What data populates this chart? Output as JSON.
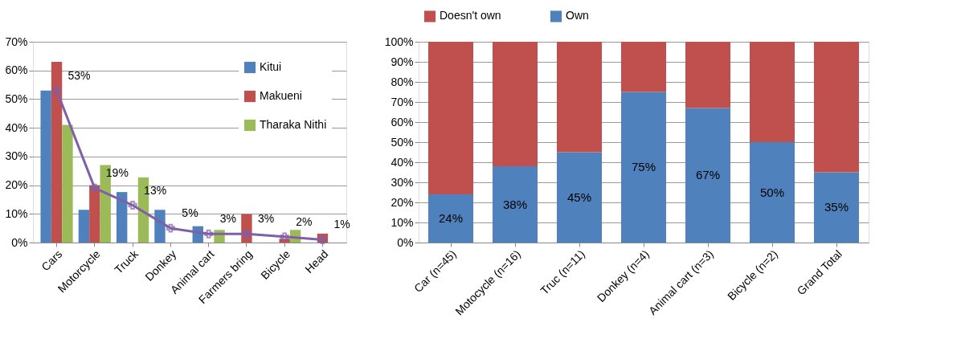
{
  "chart_data": [
    {
      "type": "bar",
      "categories": [
        "Cars",
        "Motorcycle",
        "Truck",
        "Donkey",
        "Animal cart",
        "Farmers bring",
        "Bicycle",
        "Head"
      ],
      "series": [
        {
          "name": "Kitui",
          "color": "#4f81bd",
          "values": [
            53,
            11.4,
            17.6,
            11.4,
            5.7,
            0,
            0,
            0
          ]
        },
        {
          "name": "Makueni",
          "color": "#c0504d",
          "values": [
            63,
            20,
            0,
            0,
            0,
            9.9,
            1.3,
            3.1
          ]
        },
        {
          "name": "Tharaka Nithi",
          "color": "#9bbb59",
          "values": [
            41,
            27,
            22.7,
            0,
            4.4,
            0,
            4.4,
            0
          ]
        },
        {
          "type": "line",
          "color": "#7f5fa8",
          "values": [
            53,
            19,
            13,
            5,
            3,
            3,
            2,
            1
          ],
          "value_labels": [
            "53%",
            "19%",
            "13%",
            "5%",
            "3%",
            "3%",
            "2%",
            "1%"
          ],
          "marker": "cross"
        }
      ],
      "ylim": [
        0,
        70
      ],
      "yticks": [
        {
          "value": 0,
          "label": "0%"
        },
        {
          "value": 10,
          "label": "10%"
        },
        {
          "value": 20,
          "label": "20%"
        },
        {
          "value": 30,
          "label": "30%"
        },
        {
          "value": 40,
          "label": "40%"
        },
        {
          "value": 50,
          "label": "50%"
        },
        {
          "value": 60,
          "label": "60%"
        },
        {
          "value": 70,
          "label": "70%"
        }
      ],
      "grid": "y",
      "legend": "top right"
    },
    {
      "type": "bar",
      "stacked": true,
      "categories": [
        "Car (n=45)",
        "Motocycle (n=16)",
        "Truc (n=11)",
        "Donkey (n=4)",
        "Animal cart (n=3)",
        "Bicycle (n=2)",
        "Grand Total"
      ],
      "series": [
        {
          "name": "Own",
          "color": "#4f81bd",
          "values": [
            24,
            38,
            45,
            75,
            67,
            50,
            35
          ],
          "value_labels": [
            "24%",
            "38%",
            "45%",
            "75%",
            "67%",
            "50%",
            "35%"
          ]
        },
        {
          "name": "Doesn't own",
          "color": "#c0504d",
          "values": [
            76,
            62,
            55,
            25,
            33,
            50,
            65
          ]
        }
      ],
      "ylim": [
        0,
        100
      ],
      "yticks": [
        {
          "value": 0,
          "label": "0%"
        },
        {
          "value": 10,
          "label": "10%"
        },
        {
          "value": 20,
          "label": "20%"
        },
        {
          "value": 30,
          "label": "30%"
        },
        {
          "value": 40,
          "label": "40%"
        },
        {
          "value": 50,
          "label": "50%"
        },
        {
          "value": 60,
          "label": "60%"
        },
        {
          "value": 70,
          "label": "70%"
        },
        {
          "value": 80,
          "label": "80%"
        },
        {
          "value": 90,
          "label": "90%"
        },
        {
          "value": 100,
          "label": "100%"
        }
      ],
      "grid": "y",
      "legend": "top"
    }
  ]
}
